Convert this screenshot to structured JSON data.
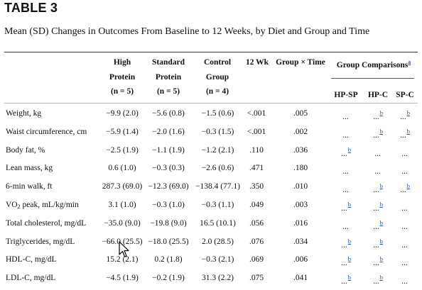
{
  "table_label": "TABLE 3",
  "caption": "Mean (SD) Changes in Outcomes From Baseline to 12 Weeks, by Diet and Group and Time",
  "headers": {
    "high_protein": [
      "High",
      "Protein",
      "(n = 5)"
    ],
    "standard_protein": [
      "Standard",
      "Protein",
      "(n = 5)"
    ],
    "control": [
      "Control",
      "Group",
      "(n = 4)"
    ],
    "wk12": "12 Wk",
    "group_time": "Group × Time",
    "group_comparisons": "Group Comparisons",
    "group_comparisons_note": "a",
    "hp_sp": "HP-SP",
    "hp_c": "HP-C",
    "sp_c": "SP-C"
  },
  "rows": [
    {
      "label": "Weight, kg",
      "label_sub": "",
      "label_rest": "",
      "hp": "−9.9 (2.0)",
      "sp": "−5.6 (0.8)",
      "cg": "−1.5 (0.6)",
      "wk12": "<.001",
      "gt": ".005",
      "g1": "...",
      "g1n": "",
      "g2": "...",
      "g2n": "b",
      "g3": "...",
      "g3n": "b"
    },
    {
      "label": "Waist circumference, cm",
      "label_sub": "",
      "label_rest": "",
      "hp": "−5.9 (1.4)",
      "sp": "−2.0 (1.6)",
      "cg": "−0.3 (1.5)",
      "wk12": "<.001",
      "gt": ".002",
      "g1": "...",
      "g1n": "",
      "g2": "...",
      "g2n": "b",
      "g3": "...",
      "g3n": "b"
    },
    {
      "label": "Body fat, %",
      "label_sub": "",
      "label_rest": "",
      "hp": "−2.5 (1.9)",
      "sp": "−1.1 (1.9)",
      "cg": "−1.2 (2.1)",
      "wk12": ".110",
      "gt": ".036",
      "g1": "...",
      "g1n": "b",
      "g2": "...",
      "g2n": "",
      "g3": "...",
      "g3n": ""
    },
    {
      "label": "Lean mass, kg",
      "label_sub": "",
      "label_rest": "",
      "hp": "0.6 (1.0)",
      "sp": "−0.3 (0.3)",
      "cg": "−2.6 (0.6)",
      "wk12": ".471",
      "gt": ".180",
      "g1": "...",
      "g1n": "",
      "g2": "...",
      "g2n": "",
      "g3": "...",
      "g3n": ""
    },
    {
      "label": "6-min walk, ft",
      "label_sub": "",
      "label_rest": "",
      "hp": "287.3 (69.0)",
      "sp": "−12.3 (69.0)",
      "cg": "−138.4 (77.1)",
      "wk12": ".350",
      "gt": ".010",
      "g1": "...",
      "g1n": "",
      "g2": "...",
      "g2n": "b",
      "g3": "...",
      "g3n": "b"
    },
    {
      "label": "VO",
      "label_sub": "2",
      "label_rest": " peak, mL/kg/min",
      "hp": "3.1 (1.0)",
      "sp": "−0.3 (1.0)",
      "cg": "−0.3 (1.1)",
      "wk12": ".049",
      "gt": ".003",
      "g1": "...",
      "g1n": "b",
      "g2": "...",
      "g2n": "b",
      "g3": "...",
      "g3n": ""
    },
    {
      "label": "Total cholesterol, mg/dL",
      "label_sub": "",
      "label_rest": "",
      "hp": "−35.0 (9.0)",
      "sp": "−19.8 (9.0)",
      "cg": "16.5 (10.1)",
      "wk12": ".056",
      "gt": ".016",
      "g1": "...",
      "g1n": "",
      "g2": "...",
      "g2n": "b",
      "g3": "...",
      "g3n": ""
    },
    {
      "label": "Triglycerides, mg/dL",
      "label_sub": "",
      "label_rest": "",
      "hp": "−66.0 (25.5)",
      "sp": "−18.0 (25.5)",
      "cg": "2.0 (28.5)",
      "wk12": ".076",
      "gt": ".034",
      "g1": "...",
      "g1n": "b",
      "g2": "...",
      "g2n": "b",
      "g3": "...",
      "g3n": ""
    },
    {
      "label": "HDL-C, mg/dL",
      "label_sub": "",
      "label_rest": "",
      "hp": "15.2 (2.1)",
      "sp": "0.2 (1.8)",
      "cg": "−0.3 (2.1)",
      "wk12": ".069",
      "gt": ".006",
      "g1": "...",
      "g1n": "b",
      "g2": "...",
      "g2n": "b",
      "g3": "...",
      "g3n": ""
    },
    {
      "label": "LDL-C, mg/dL",
      "label_sub": "",
      "label_rest": "",
      "hp": "−4.5 (1.9)",
      "sp": "−0.2 (1.9)",
      "cg": "31.3 (2.2)",
      "wk12": ".075",
      "gt": ".041",
      "g1": "...",
      "g1n": "b",
      "g2": "...",
      "g2n": "b",
      "g3": "...",
      "g3n": ""
    }
  ],
  "icons": {
    "cursor": "mouse-pointer-icon"
  },
  "colors": {
    "footnote_link": "#1a4fb5",
    "text": "#111111"
  }
}
